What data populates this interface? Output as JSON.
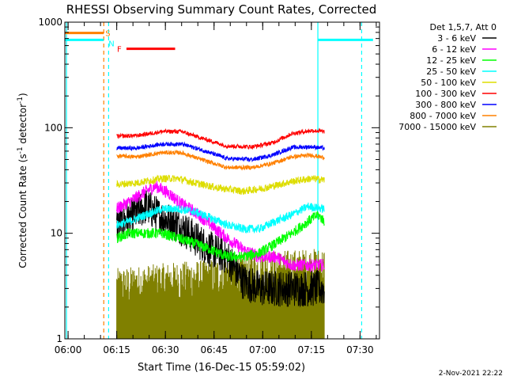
{
  "chart_data": {
    "type": "line",
    "title": "RHESSI Observing Summary Count Rates, Corrected",
    "xlabel": "Start Time (16-Dec-15 05:59:02)",
    "ylabel": "Corrected Count Rate (s",
    "ylabel_sup": "-1",
    "ylabel_tail": " detector",
    "ylabel_tail_sup": "-1",
    "ylabel_close": ")",
    "yscale": "log",
    "ylim": [
      1,
      1000
    ],
    "xlim_minutes": [
      0,
      97
    ],
    "x_ticks": [
      {
        "label": "06:00",
        "min": 1
      },
      {
        "label": "06:15",
        "min": 16
      },
      {
        "label": "06:30",
        "min": 31
      },
      {
        "label": "06:45",
        "min": 46
      },
      {
        "label": "07:00",
        "min": 61
      },
      {
        "label": "07:15",
        "min": 76
      },
      {
        "label": "07:30",
        "min": 91
      }
    ],
    "y_ticks": [
      {
        "label": "1",
        "v": 1
      },
      {
        "label": "10",
        "v": 10
      },
      {
        "label": "100",
        "v": 100
      },
      {
        "label": "1000",
        "v": 1000
      }
    ],
    "legend_header": "Det 1,5,7, Att 0",
    "series": [
      {
        "name": "3 - 6 keV",
        "color": "#000000",
        "type": "noisy",
        "pts": [
          [
            16,
            12
          ],
          [
            20,
            14
          ],
          [
            25,
            18
          ],
          [
            30,
            14
          ],
          [
            35,
            12
          ],
          [
            40,
            9
          ],
          [
            45,
            7
          ],
          [
            50,
            6
          ],
          [
            55,
            3.5
          ],
          [
            60,
            3
          ],
          [
            65,
            3
          ],
          [
            70,
            3
          ],
          [
            75,
            3
          ],
          [
            80,
            3
          ]
        ],
        "noise": 0.35
      },
      {
        "name": "6 - 12 keV",
        "color": "#ff00ff",
        "type": "noisy",
        "pts": [
          [
            16,
            17
          ],
          [
            20,
            20
          ],
          [
            25,
            25
          ],
          [
            28,
            28
          ],
          [
            32,
            24
          ],
          [
            36,
            19
          ],
          [
            40,
            16
          ],
          [
            45,
            12
          ],
          [
            50,
            9
          ],
          [
            55,
            7
          ],
          [
            60,
            6
          ],
          [
            65,
            6
          ],
          [
            70,
            5
          ],
          [
            75,
            5
          ],
          [
            80,
            5
          ]
        ],
        "noise": 0.12
      },
      {
        "name": "12 - 25 keV",
        "color": "#00ff00",
        "type": "noisy",
        "pts": [
          [
            16,
            9
          ],
          [
            20,
            10
          ],
          [
            25,
            10
          ],
          [
            30,
            10
          ],
          [
            35,
            9
          ],
          [
            40,
            8
          ],
          [
            45,
            7
          ],
          [
            50,
            6
          ],
          [
            55,
            6
          ],
          [
            60,
            6.5
          ],
          [
            65,
            8
          ],
          [
            70,
            10
          ],
          [
            75,
            13
          ],
          [
            78,
            15
          ],
          [
            80,
            13
          ]
        ],
        "noise": 0.1
      },
      {
        "name": "25 - 50 keV",
        "color": "#00ffff",
        "type": "noisy",
        "pts": [
          [
            16,
            12
          ],
          [
            20,
            13
          ],
          [
            25,
            15
          ],
          [
            30,
            17
          ],
          [
            35,
            17
          ],
          [
            40,
            16
          ],
          [
            45,
            14
          ],
          [
            50,
            12
          ],
          [
            55,
            11
          ],
          [
            60,
            11
          ],
          [
            65,
            13
          ],
          [
            70,
            15
          ],
          [
            75,
            18
          ],
          [
            80,
            17
          ]
        ],
        "noise": 0.08
      },
      {
        "name": "50 - 100 keV",
        "color": "#dddd00",
        "type": "noisy",
        "pts": [
          [
            16,
            29
          ],
          [
            22,
            30
          ],
          [
            30,
            33
          ],
          [
            35,
            33
          ],
          [
            40,
            30
          ],
          [
            47,
            27
          ],
          [
            55,
            25
          ],
          [
            62,
            27
          ],
          [
            70,
            31
          ],
          [
            76,
            33
          ],
          [
            80,
            32
          ]
        ],
        "noise": 0.07
      },
      {
        "name": "100 - 300 keV",
        "color": "#ff0000",
        "type": "noisy",
        "pts": [
          [
            16,
            83
          ],
          [
            22,
            84
          ],
          [
            30,
            92
          ],
          [
            36,
            92
          ],
          [
            42,
            80
          ],
          [
            50,
            67
          ],
          [
            58,
            66
          ],
          [
            64,
            72
          ],
          [
            70,
            88
          ],
          [
            76,
            94
          ],
          [
            80,
            92
          ]
        ],
        "noise": 0.04
      },
      {
        "name": "300 - 800 keV",
        "color": "#0000ff",
        "type": "noisy",
        "pts": [
          [
            16,
            64
          ],
          [
            22,
            64
          ],
          [
            30,
            70
          ],
          [
            36,
            70
          ],
          [
            42,
            62
          ],
          [
            50,
            51
          ],
          [
            58,
            50
          ],
          [
            64,
            55
          ],
          [
            70,
            65
          ],
          [
            76,
            66
          ],
          [
            80,
            64
          ]
        ],
        "noise": 0.04
      },
      {
        "name": "800 - 7000 keV",
        "color": "#ff8000",
        "type": "noisy",
        "pts": [
          [
            16,
            54
          ],
          [
            22,
            53
          ],
          [
            30,
            58
          ],
          [
            36,
            58
          ],
          [
            42,
            50
          ],
          [
            50,
            42
          ],
          [
            58,
            42
          ],
          [
            64,
            46
          ],
          [
            70,
            53
          ],
          [
            76,
            55
          ],
          [
            80,
            52
          ]
        ],
        "noise": 0.04
      },
      {
        "name": "7000 - 15000 keV",
        "color": "#808000",
        "type": "steps",
        "pts": [
          [
            16,
            1.8
          ],
          [
            30,
            2.0
          ],
          [
            45,
            2.2
          ],
          [
            60,
            2.6
          ],
          [
            80,
            2.8
          ]
        ],
        "noise": 0.35
      }
    ],
    "flag_bars": [
      {
        "label": "S",
        "color": "#ff8000",
        "min_start": 0,
        "min_end": 12,
        "v": 790
      },
      {
        "label": "N",
        "color": "#00ffff",
        "min_start": 0,
        "min_end": 12,
        "v": 680
      },
      {
        "label": "F",
        "color": "#ff0000",
        "min_start": 19,
        "min_end": 34,
        "v": 560
      },
      {
        "label": "",
        "color": "#00ffff",
        "min_start": 78,
        "min_end": 95,
        "v": 680
      }
    ],
    "vlines": [
      {
        "min": 0.5,
        "color": "#00ffff",
        "style": "solid"
      },
      {
        "min": 12,
        "color": "#ff8000",
        "style": "dashed"
      },
      {
        "min": 13.5,
        "color": "#00ffff",
        "style": "dashed"
      },
      {
        "min": 78,
        "color": "#00ffff",
        "style": "solid"
      },
      {
        "min": 91.5,
        "color": "#00ffff",
        "style": "dashed"
      }
    ]
  },
  "footer_timestamp": "2-Nov-2021 22:22"
}
